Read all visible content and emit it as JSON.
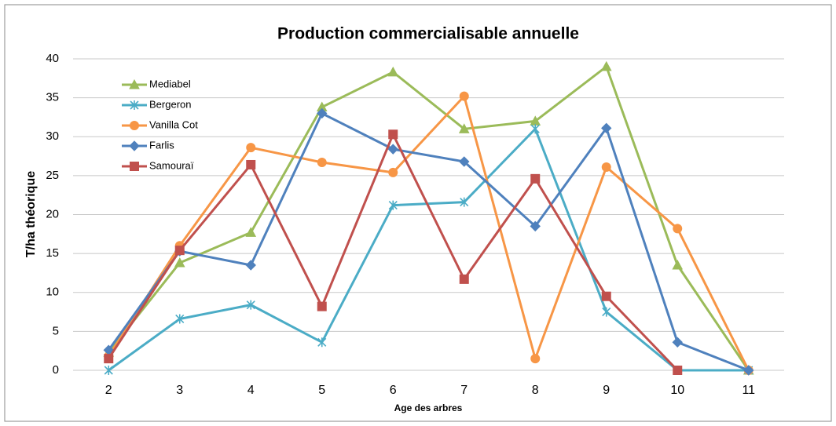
{
  "chart_data": {
    "type": "line",
    "title": "Production commercialisable annuelle",
    "x_label": "Age des arbres",
    "y_label": "T/ha théorique",
    "categories": [
      "2",
      "3",
      "4",
      "5",
      "6",
      "7",
      "8",
      "9",
      "10",
      "11"
    ],
    "series": [
      {
        "name": "Mediabel",
        "color": "#9bbb59",
        "marker": "triangle",
        "values": [
          2.3,
          13.8,
          17.7,
          33.8,
          38.3,
          31,
          32,
          39,
          13.5,
          0
        ]
      },
      {
        "name": "Bergeron",
        "color": "#4bacc6",
        "marker": "star",
        "values": [
          0,
          6.6,
          8.4,
          3.6,
          21.2,
          21.6,
          31,
          7.5,
          0,
          0
        ]
      },
      {
        "name": "Vanilla Cot",
        "color": "#f79646",
        "marker": "circle",
        "values": [
          1.8,
          16,
          28.6,
          26.7,
          25.4,
          35.2,
          1.5,
          26.1,
          18.2,
          0
        ]
      },
      {
        "name": "Farlis",
        "color": "#4f81bd",
        "marker": "diamond",
        "values": [
          2.6,
          15.3,
          13.5,
          33,
          28.4,
          26.8,
          18.5,
          31.1,
          3.6,
          0
        ]
      },
      {
        "name": "Samouraï",
        "color": "#c0504d",
        "marker": "square",
        "values": [
          1.5,
          15.4,
          26.4,
          8.2,
          30.3,
          11.7,
          24.6,
          9.5,
          0,
          null
        ]
      }
    ],
    "ylim": [
      0,
      40
    ],
    "yticks": [
      0,
      5,
      10,
      15,
      20,
      25,
      30,
      35,
      40
    ],
    "grid": true,
    "legend": "top-left"
  }
}
